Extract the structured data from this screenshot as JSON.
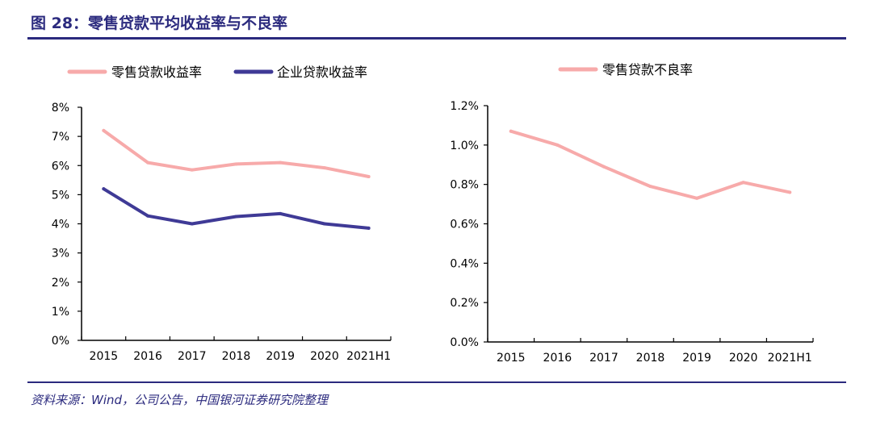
{
  "header": {
    "title": "图 28：零售贷款平均收益率与不良率"
  },
  "footer": {
    "source": "资料来源：Wind，公司公告，中国银河证券研究院整理"
  },
  "colors": {
    "accent": "#2b2a7e",
    "retail": "#f7aaaa",
    "corporate": "#3f3a96"
  },
  "chart_data": [
    {
      "type": "line",
      "categories": [
        "2015",
        "2016",
        "2017",
        "2018",
        "2019",
        "2020",
        "2021H1"
      ],
      "series": [
        {
          "name": "零售贷款收益率",
          "values": [
            7.2,
            6.1,
            5.85,
            6.05,
            6.1,
            5.92,
            5.62
          ],
          "color": "#f7aaaa"
        },
        {
          "name": "企业贷款收益率",
          "values": [
            5.2,
            4.27,
            4.0,
            4.25,
            4.35,
            4.0,
            3.85
          ],
          "color": "#3f3a96"
        }
      ],
      "ylim": [
        0,
        8
      ],
      "yticks": [
        "0%",
        "1%",
        "2%",
        "3%",
        "4%",
        "5%",
        "6%",
        "7%",
        "8%"
      ],
      "legend": "top",
      "grid": false
    },
    {
      "type": "line",
      "categories": [
        "2015",
        "2016",
        "2017",
        "2018",
        "2019",
        "2020",
        "2021H1"
      ],
      "series": [
        {
          "name": "零售贷款不良率",
          "values": [
            1.07,
            1.0,
            0.89,
            0.79,
            0.73,
            0.81,
            0.76
          ],
          "color": "#f7aaaa"
        }
      ],
      "ylim": [
        0,
        1.2
      ],
      "yticks": [
        "0.0%",
        "0.2%",
        "0.4%",
        "0.6%",
        "0.8%",
        "1.0%",
        "1.2%"
      ],
      "legend": "top",
      "grid": false
    }
  ]
}
